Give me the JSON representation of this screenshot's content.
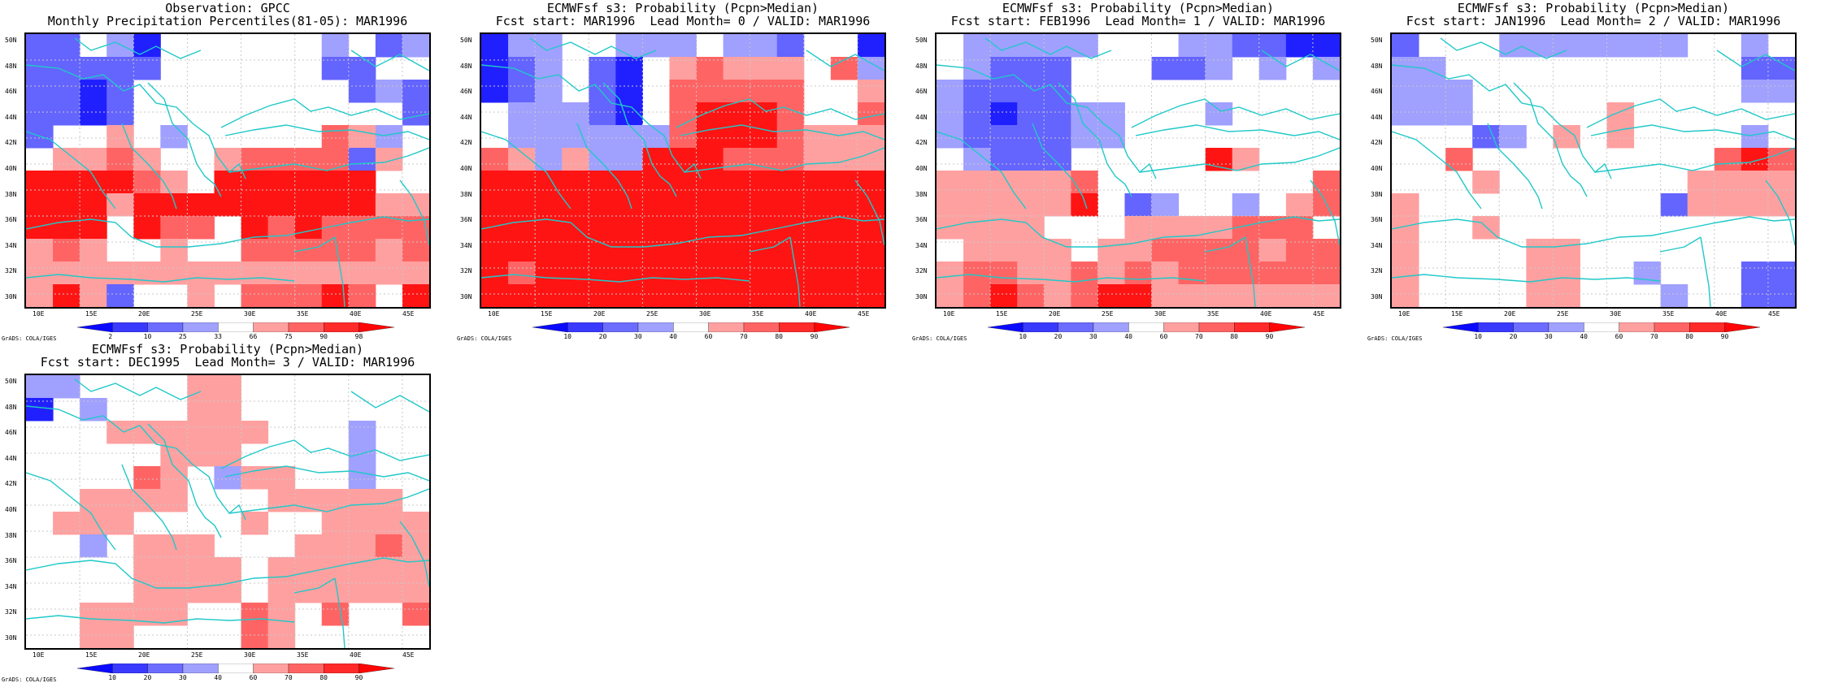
{
  "figure": {
    "panels": [
      {
        "title_line1": "Observation: GPCC",
        "title_line2": "Monthly Precipitation Percentiles(81-05): MAR1996",
        "colorbar_labels": [
          "2",
          "10",
          "25",
          "33",
          "66",
          "75",
          "90",
          "98"
        ],
        "field": [
          [
            "B2",
            "B2",
            "0",
            "B1",
            "B3",
            "0",
            "0",
            "0",
            "0",
            "0",
            "0",
            "B1",
            "0",
            "B2",
            "B1"
          ],
          [
            "B2",
            "B2",
            "B2",
            "B2",
            "B2",
            "0",
            "0",
            "0",
            "0",
            "0",
            "0",
            "B2",
            "B2",
            "0",
            "0"
          ],
          [
            "B2",
            "B2",
            "B3",
            "B2",
            "0",
            "0",
            "0",
            "0",
            "0",
            "0",
            "0",
            "0",
            "B2",
            "B1",
            "B2"
          ],
          [
            "B2",
            "B2",
            "B3",
            "B2",
            "0",
            "0",
            "0",
            "0",
            "0",
            "0",
            "0",
            "0",
            "0",
            "0",
            "B2"
          ],
          [
            "B2",
            "0",
            "0",
            "R1",
            "0",
            "B1",
            "0",
            "0",
            "0",
            "0",
            "0",
            "R2",
            "R1",
            "B1",
            "0"
          ],
          [
            "0",
            "R1",
            "R1",
            "R2",
            "R1",
            "0",
            "0",
            "R1",
            "R2",
            "R2",
            "R2",
            "R2",
            "B2",
            "R1",
            "0"
          ],
          [
            "R3",
            "R3",
            "R3",
            "R3",
            "R2",
            "R1",
            "0",
            "R3",
            "R3",
            "R3",
            "R3",
            "R3",
            "R3",
            "0",
            "0"
          ],
          [
            "R3",
            "R3",
            "R3",
            "R1",
            "R3",
            "R3",
            "R3",
            "R3",
            "R3",
            "R3",
            "R3",
            "R3",
            "R3",
            "R1",
            "R1"
          ],
          [
            "R3",
            "R3",
            "R3",
            "0",
            "R3",
            "R2",
            "R2",
            "0",
            "R3",
            "R2",
            "R3",
            "R2",
            "R2",
            "R2",
            "R2"
          ],
          [
            "R1",
            "R2",
            "R1",
            "0",
            "0",
            "R1",
            "0",
            "0",
            "R2",
            "R2",
            "R2",
            "R2",
            "R2",
            "R1",
            "R2"
          ],
          [
            "R1",
            "R1",
            "R1",
            "R1",
            "R1",
            "R1",
            "R1",
            "R1",
            "R1",
            "R1",
            "R1",
            "R1",
            "R1",
            "R1",
            "R1"
          ],
          [
            "R1",
            "R3",
            "R1",
            "B2",
            "0",
            "0",
            "R1",
            "0",
            "R2",
            "R2",
            "R2",
            "R3",
            "R2",
            "0",
            "R3"
          ]
        ]
      },
      {
        "title_line1": "ECMWFsf s3: Probability (Pcpn>Median)",
        "title_line2": "Fcst start: MAR1996  Lead Month= 0 / VALID: MAR1996",
        "colorbar_labels": [
          "10",
          "20",
          "30",
          "40",
          "60",
          "70",
          "80",
          "90"
        ],
        "field": [
          [
            "B3",
            "B1",
            "B1",
            "0",
            "0",
            "B1",
            "B1",
            "B1",
            "0",
            "B1",
            "B1",
            "B2",
            "0",
            "0",
            "B3"
          ],
          [
            "B3",
            "B2",
            "B1",
            "0",
            "B2",
            "B3",
            "0",
            "R1",
            "R2",
            "R1",
            "R1",
            "R1",
            "0",
            "R2",
            "B1"
          ],
          [
            "B3",
            "B2",
            "B1",
            "0",
            "B2",
            "B3",
            "0",
            "R2",
            "R2",
            "R2",
            "R2",
            "R2",
            "0",
            "0",
            "R1"
          ],
          [
            "0",
            "B1",
            "B1",
            "B1",
            "B2",
            "B3",
            "0",
            "R2",
            "R3",
            "R3",
            "R3",
            "R2",
            "0",
            "0",
            "R2"
          ],
          [
            "0",
            "B1",
            "B1",
            "B1",
            "B1",
            "B1",
            "B1",
            "R2",
            "R3",
            "R3",
            "R3",
            "R2",
            "R1",
            "R1",
            "R1"
          ],
          [
            "R2",
            "R1",
            "B1",
            "R1",
            "B1",
            "B1",
            "R3",
            "R3",
            "R3",
            "R2",
            "R2",
            "R2",
            "R1",
            "R1",
            "R1"
          ],
          [
            "R3",
            "R3",
            "R3",
            "R3",
            "R3",
            "R3",
            "R3",
            "R3",
            "R3",
            "R3",
            "R3",
            "R3",
            "R3",
            "R3",
            "R3"
          ],
          [
            "R3",
            "R3",
            "R3",
            "R3",
            "R3",
            "R3",
            "R3",
            "R3",
            "R3",
            "R3",
            "R3",
            "R3",
            "R3",
            "R3",
            "R3"
          ],
          [
            "R3",
            "R3",
            "R3",
            "R3",
            "R3",
            "R3",
            "R3",
            "R3",
            "R3",
            "R3",
            "R3",
            "R3",
            "R3",
            "R3",
            "R3"
          ],
          [
            "R3",
            "R3",
            "R3",
            "R3",
            "R3",
            "R3",
            "R3",
            "R3",
            "R3",
            "R3",
            "R3",
            "R3",
            "R3",
            "R3",
            "R3"
          ],
          [
            "R3",
            "R2",
            "R3",
            "R3",
            "R3",
            "R3",
            "R3",
            "R3",
            "R3",
            "R3",
            "R3",
            "R3",
            "R3",
            "R3",
            "R3"
          ],
          [
            "R3",
            "R3",
            "R3",
            "R3",
            "R3",
            "R3",
            "R3",
            "R3",
            "R3",
            "R3",
            "R3",
            "R3",
            "R3",
            "R3",
            "R3"
          ]
        ]
      },
      {
        "title_line1": "ECMWFsf s3: Probability (Pcpn>Median)",
        "title_line2": "Fcst start: FEB1996  Lead Month= 1 / VALID: MAR1996",
        "colorbar_labels": [
          "10",
          "20",
          "30",
          "40",
          "60",
          "70",
          "80",
          "90"
        ],
        "field": [
          [
            "0",
            "B1",
            "B1",
            "B1",
            "B1",
            "B1",
            "0",
            "0",
            "0",
            "B1",
            "B1",
            "B2",
            "B2",
            "B3",
            "B3"
          ],
          [
            "0",
            "B1",
            "B2",
            "B2",
            "B2",
            "0",
            "0",
            "0",
            "B2",
            "B2",
            "B1",
            "0",
            "B1",
            "0",
            "B1"
          ],
          [
            "B1",
            "B2",
            "B2",
            "B2",
            "B2",
            "0",
            "0",
            "0",
            "0",
            "0",
            "0",
            "0",
            "0",
            "0",
            "0"
          ],
          [
            "B1",
            "B2",
            "B3",
            "B2",
            "B2",
            "B1",
            "B1",
            "0",
            "0",
            "0",
            "B1",
            "0",
            "0",
            "0",
            "0"
          ],
          [
            "B1",
            "B2",
            "B2",
            "B2",
            "B2",
            "B1",
            "B1",
            "0",
            "0",
            "0",
            "0",
            "0",
            "0",
            "0",
            "0"
          ],
          [
            "0",
            "B1",
            "B2",
            "B2",
            "B2",
            "0",
            "0",
            "0",
            "0",
            "0",
            "R3",
            "R1",
            "0",
            "0",
            "0"
          ],
          [
            "R1",
            "R1",
            "R1",
            "R1",
            "R1",
            "R2",
            "0",
            "0",
            "0",
            "0",
            "0",
            "0",
            "0",
            "0",
            "R2"
          ],
          [
            "R1",
            "R1",
            "R1",
            "R1",
            "R1",
            "R3",
            "0",
            "B2",
            "B1",
            "0",
            "0",
            "B1",
            "0",
            "R1",
            "R2"
          ],
          [
            "R1",
            "R1",
            "R1",
            "R1",
            "0",
            "0",
            "0",
            "R1",
            "R1",
            "R1",
            "R1",
            "R2",
            "R2",
            "R2",
            "0"
          ],
          [
            "0",
            "R1",
            "R1",
            "R1",
            "R1",
            "0",
            "R1",
            "R1",
            "R2",
            "R2",
            "R2",
            "R2",
            "R1",
            "R2",
            "R2"
          ],
          [
            "R1",
            "R2",
            "R2",
            "R1",
            "R1",
            "R2",
            "R1",
            "R2",
            "R1",
            "R2",
            "R2",
            "R2",
            "R2",
            "R2",
            "R2"
          ],
          [
            "R1",
            "R2",
            "R3",
            "R2",
            "R1",
            "R2",
            "R3",
            "R3",
            "R1",
            "R1",
            "R1",
            "R1",
            "R1",
            "R1",
            "R1"
          ]
        ]
      },
      {
        "title_line1": "ECMWFsf s3: Probability (Pcpn>Median)",
        "title_line2": "Fcst start: JAN1996  Lead Month= 2 / VALID: MAR1996",
        "colorbar_labels": [
          "10",
          "20",
          "30",
          "40",
          "60",
          "70",
          "80",
          "90"
        ],
        "field": [
          [
            "B2",
            "0",
            "0",
            "0",
            "B1",
            "B1",
            "B1",
            "B1",
            "B1",
            "B1",
            "B1",
            "0",
            "0",
            "B1",
            "0"
          ],
          [
            "B1",
            "B1",
            "0",
            "0",
            "0",
            "0",
            "0",
            "0",
            "0",
            "0",
            "0",
            "0",
            "0",
            "B2",
            "B2"
          ],
          [
            "B1",
            "B1",
            "B1",
            "0",
            "0",
            "0",
            "0",
            "0",
            "0",
            "0",
            "0",
            "0",
            "0",
            "B1",
            "B1"
          ],
          [
            "B1",
            "B1",
            "B1",
            "0",
            "0",
            "0",
            "0",
            "0",
            "R1",
            "0",
            "0",
            "0",
            "0",
            "0",
            "0"
          ],
          [
            "0",
            "0",
            "0",
            "B2",
            "B1",
            "0",
            "R1",
            "0",
            "R1",
            "0",
            "0",
            "0",
            "0",
            "B1",
            "0"
          ],
          [
            "0",
            "0",
            "R2",
            "0",
            "0",
            "0",
            "0",
            "0",
            "0",
            "0",
            "0",
            "0",
            "R2",
            "R3",
            "R2"
          ],
          [
            "0",
            "0",
            "0",
            "R1",
            "0",
            "0",
            "0",
            "0",
            "0",
            "0",
            "0",
            "R1",
            "R1",
            "R1",
            "R1"
          ],
          [
            "R1",
            "0",
            "0",
            "0",
            "0",
            "0",
            "0",
            "0",
            "0",
            "0",
            "B2",
            "R1",
            "R1",
            "R1",
            "R1"
          ],
          [
            "R1",
            "0",
            "0",
            "R1",
            "0",
            "0",
            "0",
            "0",
            "0",
            "0",
            "0",
            "0",
            "0",
            "0",
            "0"
          ],
          [
            "R1",
            "0",
            "0",
            "0",
            "0",
            "R1",
            "R1",
            "0",
            "0",
            "0",
            "0",
            "0",
            "0",
            "0",
            "0"
          ],
          [
            "R1",
            "0",
            "0",
            "0",
            "0",
            "R1",
            "R1",
            "0",
            "0",
            "B1",
            "0",
            "0",
            "0",
            "B2",
            "B2"
          ],
          [
            "R1",
            "0",
            "0",
            "0",
            "0",
            "R1",
            "R1",
            "0",
            "0",
            "0",
            "B1",
            "0",
            "0",
            "B2",
            "B2"
          ]
        ]
      },
      {
        "title_line1": "ECMWFsf s3: Probability (Pcpn>Median)",
        "title_line2": "Fcst start: DEC1995  Lead Month= 3 / VALID: MAR1996",
        "colorbar_labels": [
          "10",
          "20",
          "30",
          "40",
          "60",
          "70",
          "80",
          "90"
        ],
        "field": [
          [
            "B1",
            "B1",
            "0",
            "0",
            "0",
            "0",
            "R1",
            "R1",
            "0",
            "0",
            "0",
            "0",
            "0",
            "0",
            "0"
          ],
          [
            "B3",
            "0",
            "B1",
            "0",
            "0",
            "0",
            "R1",
            "R1",
            "0",
            "0",
            "0",
            "0",
            "0",
            "0",
            "0"
          ],
          [
            "0",
            "0",
            "0",
            "R1",
            "R1",
            "R1",
            "R1",
            "R1",
            "R1",
            "0",
            "0",
            "0",
            "B1",
            "0",
            "0"
          ],
          [
            "0",
            "0",
            "0",
            "0",
            "0",
            "R1",
            "R1",
            "R1",
            "0",
            "0",
            "0",
            "0",
            "B1",
            "0",
            "0"
          ],
          [
            "0",
            "0",
            "0",
            "0",
            "R2",
            "R1",
            "0",
            "B1",
            "R1",
            "R1",
            "0",
            "0",
            "B1",
            "0",
            "0"
          ],
          [
            "0",
            "0",
            "R1",
            "R1",
            "R1",
            "R1",
            "0",
            "0",
            "0",
            "R1",
            "R1",
            "R1",
            "R1",
            "R1",
            "0"
          ],
          [
            "0",
            "R1",
            "R1",
            "R1",
            "0",
            "0",
            "0",
            "0",
            "R1",
            "0",
            "0",
            "R1",
            "R1",
            "R1",
            "R1"
          ],
          [
            "0",
            "0",
            "B1",
            "0",
            "R1",
            "R1",
            "R1",
            "0",
            "0",
            "0",
            "R1",
            "R1",
            "R1",
            "R2",
            "R1"
          ],
          [
            "0",
            "0",
            "0",
            "0",
            "R1",
            "R1",
            "R1",
            "R1",
            "0",
            "R1",
            "R1",
            "R1",
            "R1",
            "R1",
            "R1"
          ],
          [
            "0",
            "0",
            "0",
            "0",
            "R1",
            "R1",
            "R1",
            "R1",
            "0",
            "R1",
            "R1",
            "R1",
            "R1",
            "R1",
            "R1"
          ],
          [
            "0",
            "0",
            "R1",
            "R1",
            "R1",
            "R1",
            "0",
            "0",
            "R2",
            "R1",
            "0",
            "R2",
            "0",
            "0",
            "R2"
          ],
          [
            "0",
            "0",
            "R1",
            "R1",
            "0",
            "0",
            "0",
            "0",
            "R2",
            "R1",
            "0",
            "0",
            "0",
            "0",
            "0"
          ]
        ]
      }
    ],
    "y_tick_labels": [
      "50N",
      "48N",
      "46N",
      "44N",
      "42N",
      "40N",
      "38N",
      "36N",
      "34N",
      "32N",
      "30N"
    ],
    "x_tick_labels": [
      "10E",
      "15E",
      "20E",
      "25E",
      "30E",
      "35E",
      "40E",
      "45E"
    ],
    "credit": "GrADS: COLA/IGES",
    "colors": {
      "B3": "#2020ff",
      "B2": "#6464ff",
      "B1": "#a0a0ff",
      "R1": "#ffa0a0",
      "R2": "#ff6464",
      "R3": "#ff1414",
      "coast": "#20c8c8",
      "grid": "#c8c8c8",
      "colorbar": [
        "#0a0aff",
        "#3a3aff",
        "#6c6cff",
        "#a0a0ff",
        "#ffffff",
        "#ffa0a0",
        "#ff6464",
        "#ff2a2a",
        "#ff0505"
      ]
    }
  }
}
